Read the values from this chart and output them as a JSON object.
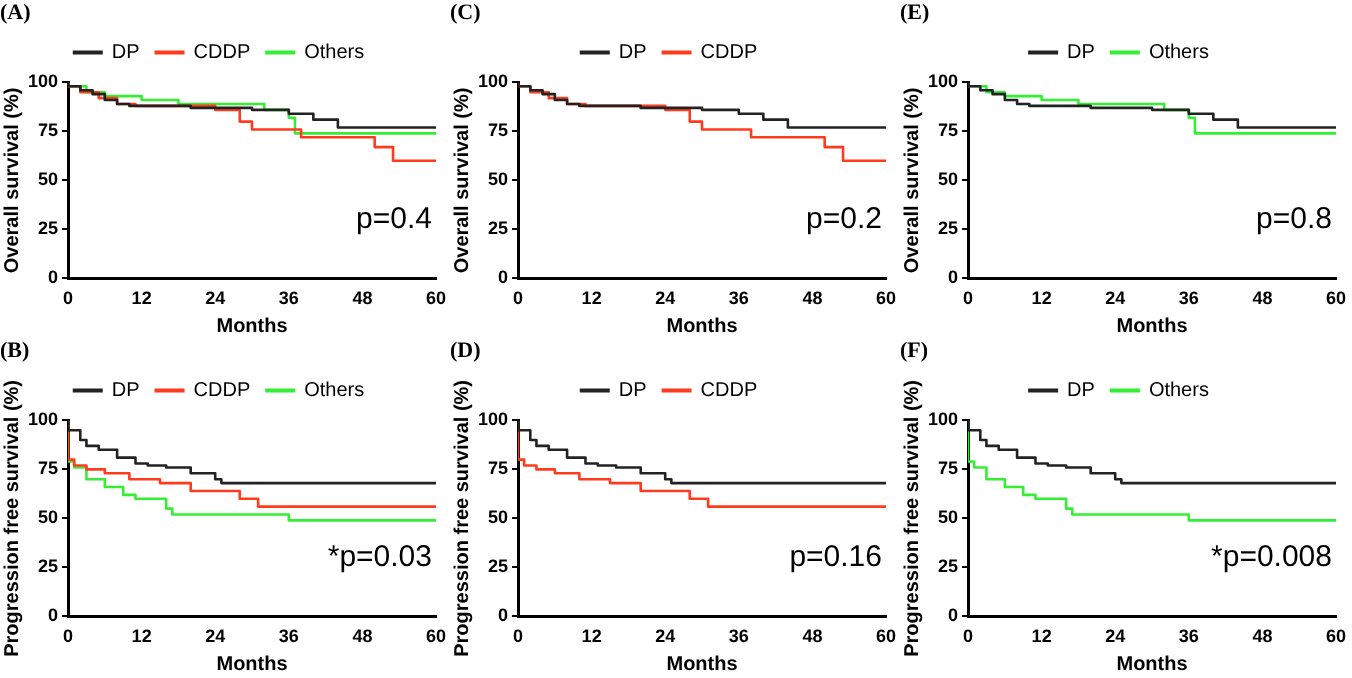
{
  "chart_data": [
    {
      "type": "step",
      "title": "(A)",
      "xlabel": "Months",
      "ylabel": "Overall survival (%)",
      "xlim": [
        0,
        60
      ],
      "xticks": [
        0,
        12,
        24,
        36,
        48,
        60
      ],
      "ylim": [
        0,
        100
      ],
      "yticks": [
        0,
        25,
        50,
        75,
        100
      ],
      "grid": false,
      "legend": "top",
      "annotations": [
        "p=0.4"
      ],
      "series": [
        {
          "name": "DP",
          "color": "#222222",
          "x": [
            0,
            2,
            4,
            6,
            8,
            10,
            20,
            30,
            36,
            40,
            44,
            52,
            60
          ],
          "values": [
            100,
            98,
            96,
            94,
            91,
            89,
            88,
            87,
            86,
            84,
            81,
            77,
            77
          ]
        },
        {
          "name": "CDDP",
          "color": "#ff3b1f",
          "x": [
            0,
            2,
            5,
            8,
            11,
            24,
            28,
            30,
            38,
            50,
            53,
            55,
            60
          ],
          "values": [
            100,
            98,
            95,
            92,
            89,
            88,
            86,
            80,
            76,
            72,
            67,
            60,
            60
          ]
        },
        {
          "name": "Others",
          "color": "#33ee33",
          "x": [
            0,
            3,
            6,
            12,
            18,
            32,
            36,
            37,
            46,
            60
          ],
          "values": [
            100,
            98,
            95,
            93,
            91,
            89,
            86,
            82,
            74,
            74
          ]
        }
      ]
    },
    {
      "type": "step",
      "title": "(C)",
      "xlabel": "Months",
      "ylabel": "Overall survival (%)",
      "xlim": [
        0,
        60
      ],
      "xticks": [
        0,
        12,
        24,
        36,
        48,
        60
      ],
      "ylim": [
        0,
        100
      ],
      "yticks": [
        0,
        25,
        50,
        75,
        100
      ],
      "grid": false,
      "legend": "top",
      "annotations": [
        "p=0.2"
      ],
      "series": [
        {
          "name": "DP",
          "color": "#222222",
          "x": [
            0,
            2,
            4,
            6,
            8,
            10,
            20,
            30,
            36,
            40,
            44,
            52,
            60
          ],
          "values": [
            100,
            98,
            96,
            94,
            91,
            89,
            88,
            87,
            86,
            84,
            81,
            77,
            77
          ]
        },
        {
          "name": "CDDP",
          "color": "#ff3b1f",
          "x": [
            0,
            2,
            5,
            8,
            11,
            24,
            28,
            30,
            38,
            50,
            53,
            55,
            60
          ],
          "values": [
            100,
            98,
            95,
            92,
            89,
            88,
            86,
            80,
            76,
            72,
            67,
            60,
            60
          ]
        }
      ]
    },
    {
      "type": "step",
      "title": "(E)",
      "xlabel": "Months",
      "ylabel": "Overall survival (%)",
      "xlim": [
        0,
        60
      ],
      "xticks": [
        0,
        12,
        24,
        36,
        48,
        60
      ],
      "ylim": [
        0,
        100
      ],
      "yticks": [
        0,
        25,
        50,
        75,
        100
      ],
      "grid": false,
      "legend": "top",
      "annotations": [
        "p=0.8"
      ],
      "series": [
        {
          "name": "DP",
          "color": "#222222",
          "x": [
            0,
            2,
            4,
            6,
            8,
            10,
            20,
            30,
            36,
            40,
            44,
            52,
            60
          ],
          "values": [
            100,
            98,
            96,
            94,
            91,
            89,
            88,
            87,
            86,
            84,
            81,
            77,
            77
          ]
        },
        {
          "name": "Others",
          "color": "#33ee33",
          "x": [
            0,
            3,
            6,
            12,
            18,
            32,
            36,
            37,
            46,
            60
          ],
          "values": [
            100,
            98,
            95,
            93,
            91,
            89,
            86,
            82,
            74,
            74
          ]
        }
      ]
    },
    {
      "type": "step",
      "title": "(B)",
      "xlabel": "Months",
      "ylabel": "Progression free survival (%)",
      "xlim": [
        0,
        60
      ],
      "xticks": [
        0,
        12,
        24,
        36,
        48,
        60
      ],
      "ylim": [
        0,
        100
      ],
      "yticks": [
        0,
        25,
        50,
        75,
        100
      ],
      "grid": false,
      "legend": "top",
      "annotations": [
        "*p=0.03"
      ],
      "series": [
        {
          "name": "DP",
          "color": "#222222",
          "x": [
            0,
            2,
            3,
            5,
            8,
            11,
            13,
            16,
            20,
            24,
            25,
            40,
            60
          ],
          "values": [
            100,
            95,
            90,
            87,
            85,
            81,
            78,
            77,
            76,
            73,
            70,
            68,
            68
          ]
        },
        {
          "name": "CDDP",
          "color": "#ff3b1f",
          "x": [
            0,
            1,
            3,
            6,
            10,
            15,
            20,
            28,
            31,
            46,
            60
          ],
          "values": [
            100,
            80,
            77,
            75,
            73,
            70,
            68,
            64,
            60,
            56,
            56
          ]
        },
        {
          "name": "Others",
          "color": "#33ee33",
          "x": [
            0,
            1,
            3,
            6,
            9,
            11,
            16,
            17,
            36,
            45,
            60
          ],
          "values": [
            100,
            79,
            76,
            70,
            66,
            62,
            60,
            55,
            52,
            49,
            49
          ]
        }
      ]
    },
    {
      "type": "step",
      "title": "(D)",
      "xlabel": "Months",
      "ylabel": "Progression free survival (%)",
      "xlim": [
        0,
        60
      ],
      "xticks": [
        0,
        12,
        24,
        36,
        48,
        60
      ],
      "ylim": [
        0,
        100
      ],
      "yticks": [
        0,
        25,
        50,
        75,
        100
      ],
      "grid": false,
      "legend": "top",
      "annotations": [
        "p=0.16"
      ],
      "series": [
        {
          "name": "DP",
          "color": "#222222",
          "x": [
            0,
            2,
            3,
            5,
            8,
            11,
            13,
            16,
            20,
            24,
            25,
            40,
            60
          ],
          "values": [
            100,
            95,
            90,
            87,
            85,
            81,
            78,
            77,
            76,
            73,
            70,
            68,
            68
          ]
        },
        {
          "name": "CDDP",
          "color": "#ff3b1f",
          "x": [
            0,
            1,
            3,
            6,
            10,
            15,
            20,
            28,
            31,
            46,
            60
          ],
          "values": [
            100,
            80,
            77,
            75,
            73,
            70,
            68,
            64,
            60,
            56,
            56
          ]
        }
      ]
    },
    {
      "type": "step",
      "title": "(F)",
      "xlabel": "Months",
      "ylabel": "Progression free survival (%)",
      "xlim": [
        0,
        60
      ],
      "xticks": [
        0,
        12,
        24,
        36,
        48,
        60
      ],
      "ylim": [
        0,
        100
      ],
      "yticks": [
        0,
        25,
        50,
        75,
        100
      ],
      "grid": false,
      "legend": "top",
      "annotations": [
        "*p=0.008"
      ],
      "series": [
        {
          "name": "DP",
          "color": "#222222",
          "x": [
            0,
            2,
            3,
            5,
            8,
            11,
            13,
            16,
            20,
            24,
            25,
            40,
            60
          ],
          "values": [
            100,
            95,
            90,
            87,
            85,
            81,
            78,
            77,
            76,
            73,
            70,
            68,
            68
          ]
        },
        {
          "name": "Others",
          "color": "#33ee33",
          "x": [
            0,
            1,
            3,
            6,
            9,
            11,
            16,
            17,
            36,
            45,
            60
          ],
          "values": [
            100,
            79,
            76,
            70,
            66,
            62,
            60,
            55,
            52,
            49,
            49
          ]
        }
      ]
    }
  ]
}
